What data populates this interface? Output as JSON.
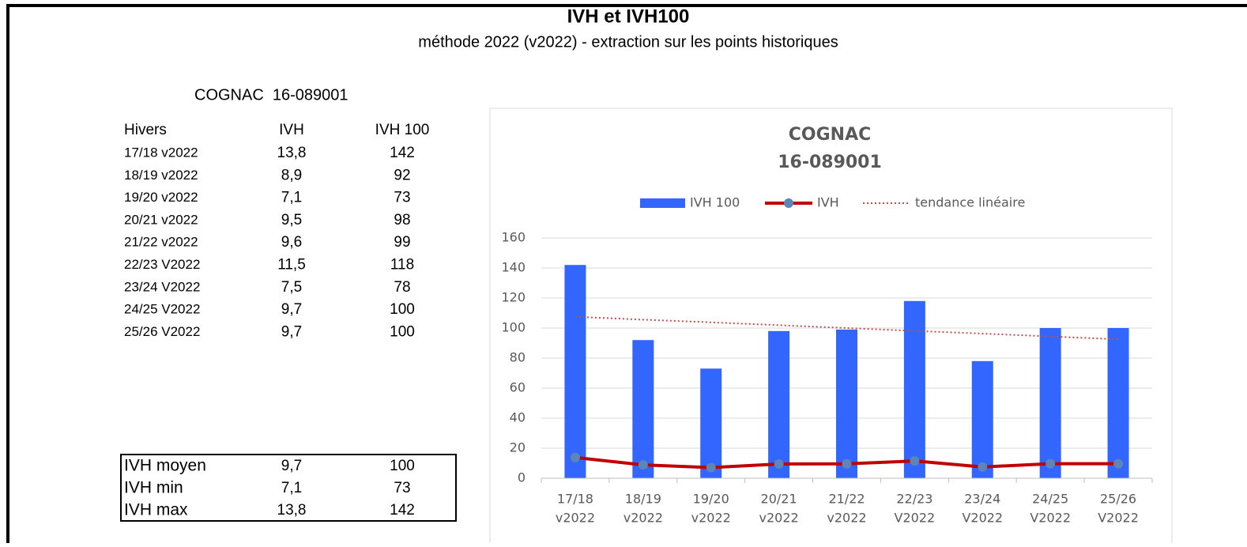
{
  "header": {
    "title": "IVH et IVH100",
    "subtitle": "méthode 2022 (v2022) - extraction sur les points historiques"
  },
  "station": "COGNAC  16-089001",
  "table": {
    "columns": [
      "Hivers",
      "IVH",
      "IVH 100"
    ],
    "rows": [
      [
        "17/18 v2022",
        "13,8",
        "142"
      ],
      [
        "18/19 v2022",
        "8,9",
        "92"
      ],
      [
        "19/20 v2022",
        "7,1",
        "73"
      ],
      [
        "20/21 v2022",
        "9,5",
        "98"
      ],
      [
        "21/22 v2022",
        "9,6",
        "99"
      ],
      [
        "22/23 V2022",
        "11,5",
        "118"
      ],
      [
        "23/24 V2022",
        "7,5",
        "78"
      ],
      [
        "24/25 V2022",
        "9,7",
        "100"
      ],
      [
        "25/26 V2022",
        "9,7",
        "100"
      ]
    ]
  },
  "summary": {
    "rows": [
      [
        "IVH moyen",
        "9,7",
        "100"
      ],
      [
        "IVH min",
        "7,1",
        "73"
      ],
      [
        "IVH max",
        "13,8",
        "142"
      ]
    ]
  },
  "chart_data": {
    "type": "bar",
    "title": [
      "COGNAC",
      "16-089001"
    ],
    "categories": [
      [
        "17/18",
        "v2022"
      ],
      [
        "18/19",
        "v2022"
      ],
      [
        "19/20",
        "v2022"
      ],
      [
        "20/21",
        "v2022"
      ],
      [
        "21/22",
        "v2022"
      ],
      [
        "22/23",
        "V2022"
      ],
      [
        "23/24",
        "V2022"
      ],
      [
        "24/25",
        "V2022"
      ],
      [
        "25/26",
        "V2022"
      ]
    ],
    "series": [
      {
        "name": "IVH 100",
        "type": "bar",
        "color": "#3366ff",
        "values": [
          142,
          92,
          73,
          98,
          99,
          118,
          78,
          100,
          100
        ]
      },
      {
        "name": "IVH",
        "type": "line",
        "color": "#c00000",
        "marker_color": "#5b86b5",
        "values": [
          13.8,
          8.9,
          7.1,
          9.5,
          9.6,
          11.5,
          7.5,
          9.7,
          9.7
        ]
      },
      {
        "name": "tendance linéaire",
        "type": "trend",
        "color": "#c0504d",
        "values": [
          107.5,
          105.6,
          103.8,
          101.9,
          100,
          98.1,
          96.3,
          94.4,
          92.5
        ]
      }
    ],
    "ylim": [
      0,
      160
    ],
    "yticks": [
      0,
      20,
      40,
      60,
      80,
      100,
      120,
      140,
      160
    ],
    "grid": true,
    "legend": "top"
  }
}
